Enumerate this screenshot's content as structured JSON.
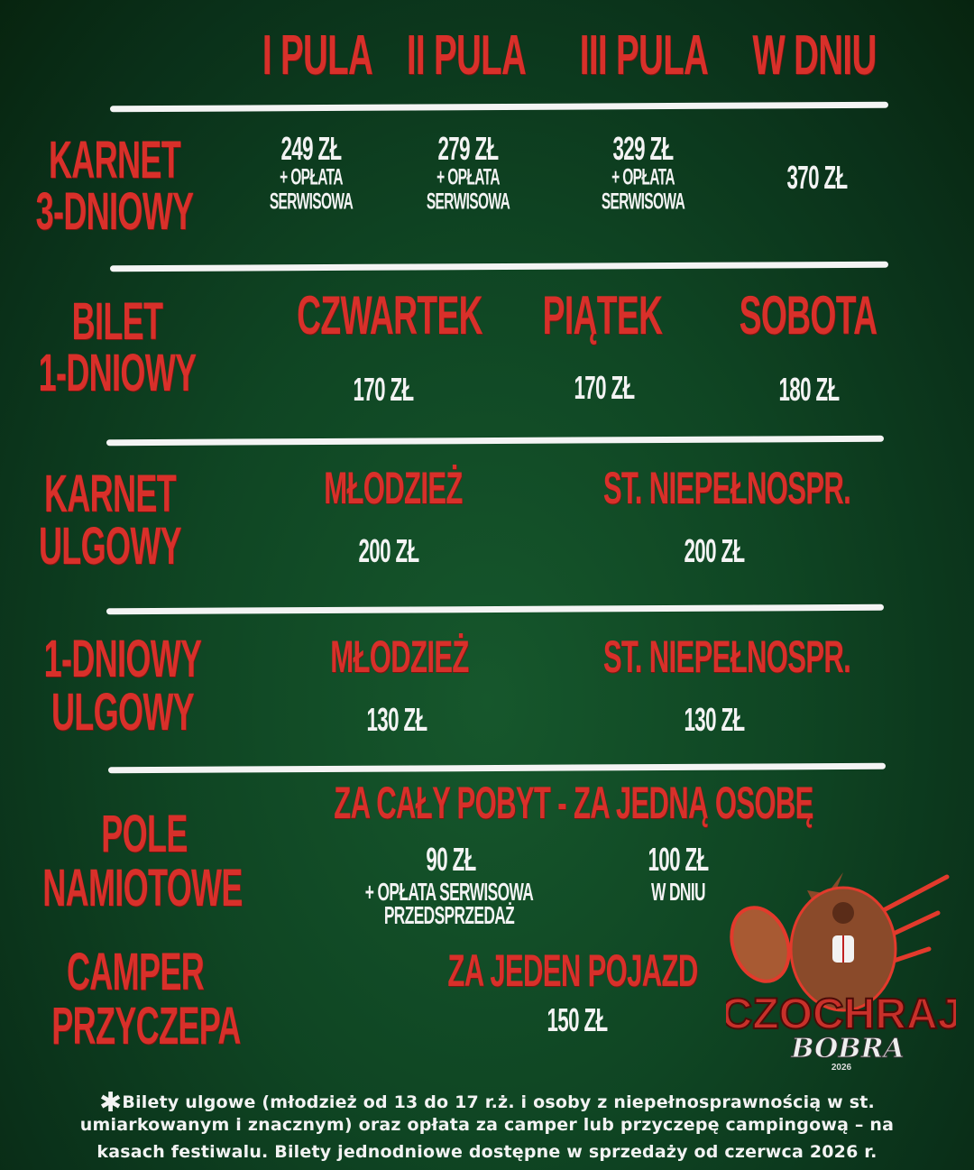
{
  "header": {
    "columns": [
      "I PULA",
      "II PULA",
      "III PULA",
      "W DNIU"
    ]
  },
  "karnet3": {
    "label": [
      "KARNET",
      "3-DNIOWY"
    ],
    "prices": [
      {
        "price": "249 ZŁ",
        "fee1": "+ OPŁATA",
        "fee2": "SERWISOWA"
      },
      {
        "price": "279 ZŁ",
        "fee1": "+ OPŁATA",
        "fee2": "SERWISOWA"
      },
      {
        "price": "329 ZŁ",
        "fee1": "+ OPŁATA",
        "fee2": "SERWISOWA"
      }
    ],
    "day_price": "370 ZŁ"
  },
  "bilet1": {
    "label": [
      "BILET",
      "1-DNIOWY"
    ],
    "days": [
      {
        "name": "CZWARTEK",
        "price": "170 ZŁ"
      },
      {
        "name": "PIĄTEK",
        "price": "170 ZŁ"
      },
      {
        "name": "SOBOTA",
        "price": "180 ZŁ"
      }
    ]
  },
  "karnetUlgowy": {
    "label": [
      "KARNET",
      "ULGOWY"
    ],
    "options": [
      {
        "name": "MŁODZIEŻ",
        "price": "200 ZŁ"
      },
      {
        "name": "ST. NIEPEŁNOSPR.",
        "price": "200 ZŁ"
      }
    ]
  },
  "dniowyUlgowy": {
    "label": [
      "1-DNIOWY",
      "ULGOWY"
    ],
    "options": [
      {
        "name": "MŁODZIEŻ",
        "price": "130 ZŁ"
      },
      {
        "name": "ST. NIEPEŁNOSPR.",
        "price": "130 ZŁ"
      }
    ]
  },
  "pole": {
    "label": [
      "POLE",
      "NAMIOTOWE"
    ],
    "heading": "ZA CAŁY POBYT - ZA JEDNĄ OSOBĘ",
    "presale": {
      "price": "90 ZŁ",
      "line1": "+ OPŁATA SERWISOWA",
      "line2": "PRZEDSPRZEDAŻ"
    },
    "day": {
      "price": "100 ZŁ",
      "line1": "W DNIU"
    }
  },
  "camper": {
    "label": [
      "CAMPER",
      "PRZYCZEPA"
    ],
    "heading": "ZA JEDEN POJAZD",
    "price": "150 ZŁ"
  },
  "footnote": {
    "lines": [
      "Bilety ulgowe (młodzież od 13 do 17 r.ż. i osoby z niepełnosprawnością w st.",
      "umiarkowanym i znacznym) oraz opłata za camper lub przyczepę campingową – na",
      "kasach festiwalu. Bilety jednodniowe dostępne w sprzedaży od czerwca 2026 r."
    ],
    "icon": "asterisk-icon"
  },
  "logo": {
    "line1": "CZOCHRAJ",
    "line2": "BOBRA",
    "year": "2026"
  },
  "colors": {
    "accent": "#d8302a",
    "text": "#f3f3f3",
    "background": "#0f4523"
  }
}
